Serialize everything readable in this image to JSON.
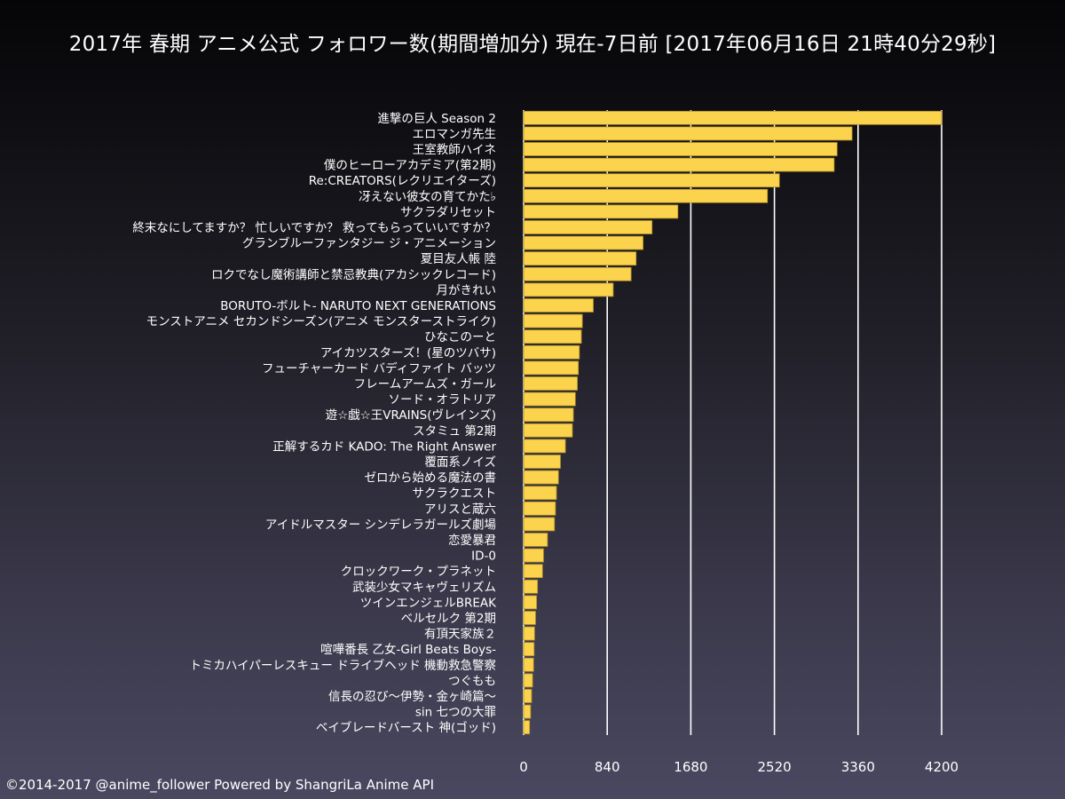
{
  "title": "2017年 春期 アニメ公式 フォロワー数(期間増加分) 現在-7日前 [2017年06月16日 21時40分29秒]",
  "footer": "©2014-2017 @anime_follower Powered by ShangriLa Anime API",
  "colors": {
    "bar": "#FCD34D",
    "bar_stroke": "#B08F2A",
    "grid": "#FFFFFF",
    "text": "#FFFFFF"
  },
  "chart_data": {
    "type": "bar",
    "orientation": "horizontal",
    "xlim": [
      0,
      4200
    ],
    "xticks": [
      0,
      840,
      1680,
      2520,
      3360,
      4200
    ],
    "grid": true,
    "categories": [
      "進撃の巨人 Season 2",
      "エロマンガ先生",
      "王室教師ハイネ",
      "僕のヒーローアカデミア(第2期)",
      "Re:CREATORS(レクリエイターズ)",
      "冴えない彼女の育てかた♭",
      "サクラダリセット",
      "終末なにしてますか？ 忙しいですか？ 救ってもらっていいですか？",
      "グランブルーファンタジー ジ・アニメーション",
      "夏目友人帳 陸",
      "ロクでなし魔術講師と禁忌教典(アカシックレコード)",
      "月がきれい",
      "BORUTO-ボルト- NARUTO NEXT GENERATIONS",
      "モンストアニメ セカンドシーズン(アニメ モンスターストライク)",
      "ひなこのーと",
      "アイカツスターズ！(星のツバサ)",
      "フューチャーカード バディファイト バッツ",
      "フレームアームズ・ガール",
      "ソード・オラトリア",
      "遊☆戯☆王VRAINS(ヴレインズ)",
      "スタミュ 第2期",
      "正解するカド KADO: The Right Answer",
      "覆面系ノイズ",
      "ゼロから始める魔法の書",
      "サクラクエスト",
      "アリスと蔵六",
      "アイドルマスター シンデレラガールズ劇場",
      "恋愛暴君",
      "ID-0",
      "クロックワーク・プラネット",
      "武装少女マキャヴェリズム",
      "ツインエンジェルBREAK",
      "ベルセルク 第2期",
      "有頂天家族２",
      "喧嘩番長 乙女-Girl Beats Boys-",
      "トミカハイパーレスキュー ドライブヘッド 機動救急警察",
      "つぐもも",
      "信長の忍び～伊勢・金ヶ崎篇～",
      "sin 七つの大罪",
      "ベイブレードバースト 神(ゴッド)"
    ],
    "values": [
      4200,
      3300,
      3150,
      3120,
      2570,
      2450,
      1550,
      1290,
      1200,
      1130,
      1080,
      900,
      700,
      590,
      580,
      560,
      550,
      540,
      520,
      500,
      490,
      420,
      370,
      350,
      330,
      320,
      310,
      240,
      200,
      190,
      140,
      130,
      120,
      110,
      105,
      100,
      90,
      80,
      70,
      60
    ]
  }
}
